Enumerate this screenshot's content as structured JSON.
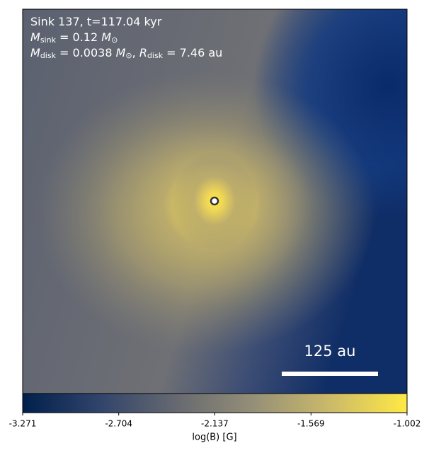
{
  "chart_data": {
    "type": "field-map",
    "annotation_lines": [
      [
        {
          "text": "Sink 137, t=117.04 kyr",
          "style": "normal"
        }
      ],
      [
        {
          "text": "M",
          "style": "italic"
        },
        {
          "text": "sink",
          "style": "sub"
        },
        {
          "text": " = 0.12 ",
          "style": "normal"
        },
        {
          "text": "M",
          "style": "italic"
        },
        {
          "text": "⊙",
          "style": "sub"
        }
      ],
      [
        {
          "text": "M",
          "style": "italic"
        },
        {
          "text": "disk",
          "style": "sub"
        },
        {
          "text": " = 0.0038 ",
          "style": "normal"
        },
        {
          "text": "M",
          "style": "italic"
        },
        {
          "text": "⊙",
          "style": "sub"
        },
        {
          "text": ", ",
          "style": "normal"
        },
        {
          "text": "R",
          "style": "italic"
        },
        {
          "text": "disk",
          "style": "sub"
        },
        {
          "text": " = 7.46 au",
          "style": "normal"
        }
      ]
    ],
    "scalebar_label": "125 au",
    "colormap": [
      "#00204c",
      "#31446b",
      "#666970",
      "#958f78",
      "#cbba69",
      "#ffe945"
    ],
    "clim": [
      -3.271,
      -1.002
    ],
    "cticks": [
      -3.271,
      -2.704,
      -2.137,
      -1.569,
      -1.002
    ],
    "clabel": "log(B) [G]"
  }
}
